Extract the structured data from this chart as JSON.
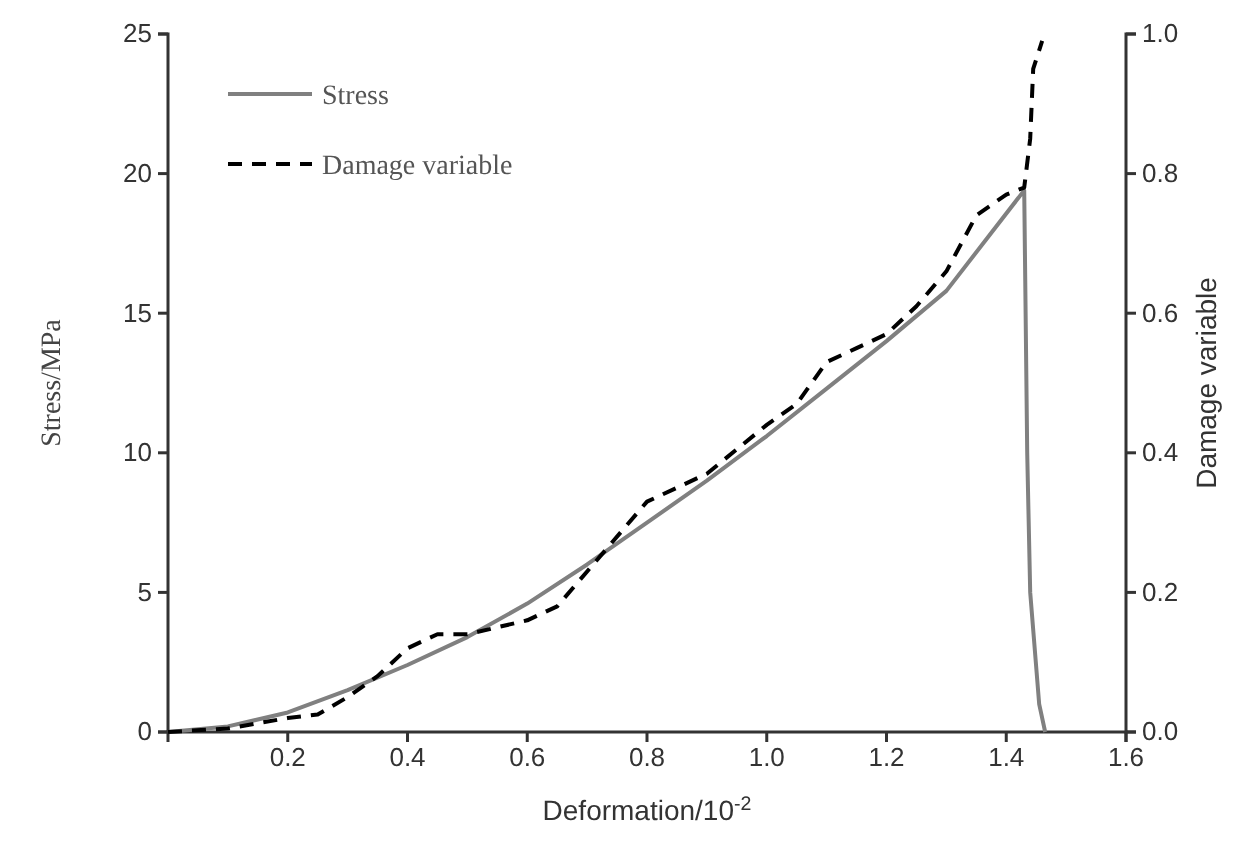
{
  "chart_data": {
    "type": "line",
    "xlabel": "Deformation/10$^{-2}$",
    "ylabel": "Stress/MPa",
    "y2label": "Damage variable",
    "xlim": [
      0,
      1.6
    ],
    "xticks": [
      0.2,
      0.4,
      0.6,
      0.8,
      {
        "value": 1,
        "label": "1.0"
      },
      1.2,
      1.4,
      1.6
    ],
    "ylim": [
      0,
      25
    ],
    "yticks": [
      0,
      5,
      10,
      15,
      20,
      25
    ],
    "y2lim": [
      0,
      1.0
    ],
    "y2ticks": [
      {
        "value": 0,
        "label": "0.0"
      },
      0.2,
      0.4,
      0.6,
      0.8,
      {
        "value": 1,
        "label": "1.0"
      }
    ],
    "grid": false,
    "legend": "top left",
    "marker": "none",
    "series": [
      {
        "name": "Stress",
        "color": "#808080",
        "line_style": "solid",
        "x": [
          0,
          0.1,
          0.2,
          0.3,
          0.4,
          0.5,
          0.6,
          0.7,
          0.8,
          0.9,
          1.0,
          1.1,
          1.2,
          1.3,
          1.43,
          1.435,
          1.44,
          1.455,
          1.465
        ],
        "values": [
          0,
          0.2,
          0.7,
          1.5,
          2.4,
          3.4,
          4.6,
          6.0,
          7.5,
          9.0,
          10.6,
          12.3,
          14.0,
          15.8,
          19.4,
          10,
          5,
          1,
          0
        ]
      },
      {
        "name": "Damage variable",
        "color": "#000000",
        "line_style": "dashed",
        "axis": "y2",
        "x": [
          0,
          0.1,
          0.2,
          0.25,
          0.3,
          0.35,
          0.4,
          0.45,
          0.5,
          0.55,
          0.6,
          0.65,
          0.7,
          0.8,
          0.85,
          0.9,
          1.0,
          1.05,
          1.1,
          1.15,
          1.2,
          1.25,
          1.3,
          1.35,
          1.4,
          1.43,
          1.44,
          1.445,
          1.46
        ],
        "values": [
          0,
          0.005,
          0.02,
          0.025,
          0.05,
          0.08,
          0.12,
          0.14,
          0.14,
          0.15,
          0.16,
          0.18,
          0.23,
          0.33,
          0.35,
          0.37,
          0.44,
          0.47,
          0.53,
          0.55,
          0.57,
          0.61,
          0.66,
          0.74,
          0.77,
          0.78,
          0.85,
          0.95,
          0.99
        ]
      }
    ]
  }
}
